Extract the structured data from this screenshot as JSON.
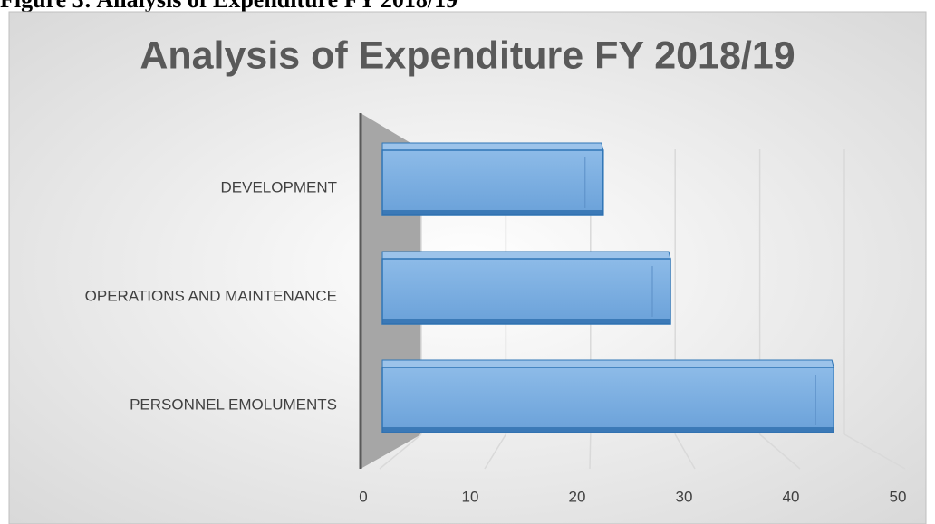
{
  "caption": "Figure 3: Analysis of Expenditure FY 2018/19",
  "chart_data": {
    "type": "bar",
    "orientation": "horizontal",
    "title": "Analysis of Expenditure FY 2018/19",
    "categories": [
      "PERSONNEL EMOLUMENTS",
      "OPERATIONS AND MAINTENANCE",
      "DEVELOPMENT"
    ],
    "values": [
      47,
      30,
      23
    ],
    "color": "#5b9bd5",
    "xlim": [
      0,
      50
    ],
    "xticks": [
      0,
      10,
      20,
      30,
      40,
      50
    ],
    "grid": true
  }
}
